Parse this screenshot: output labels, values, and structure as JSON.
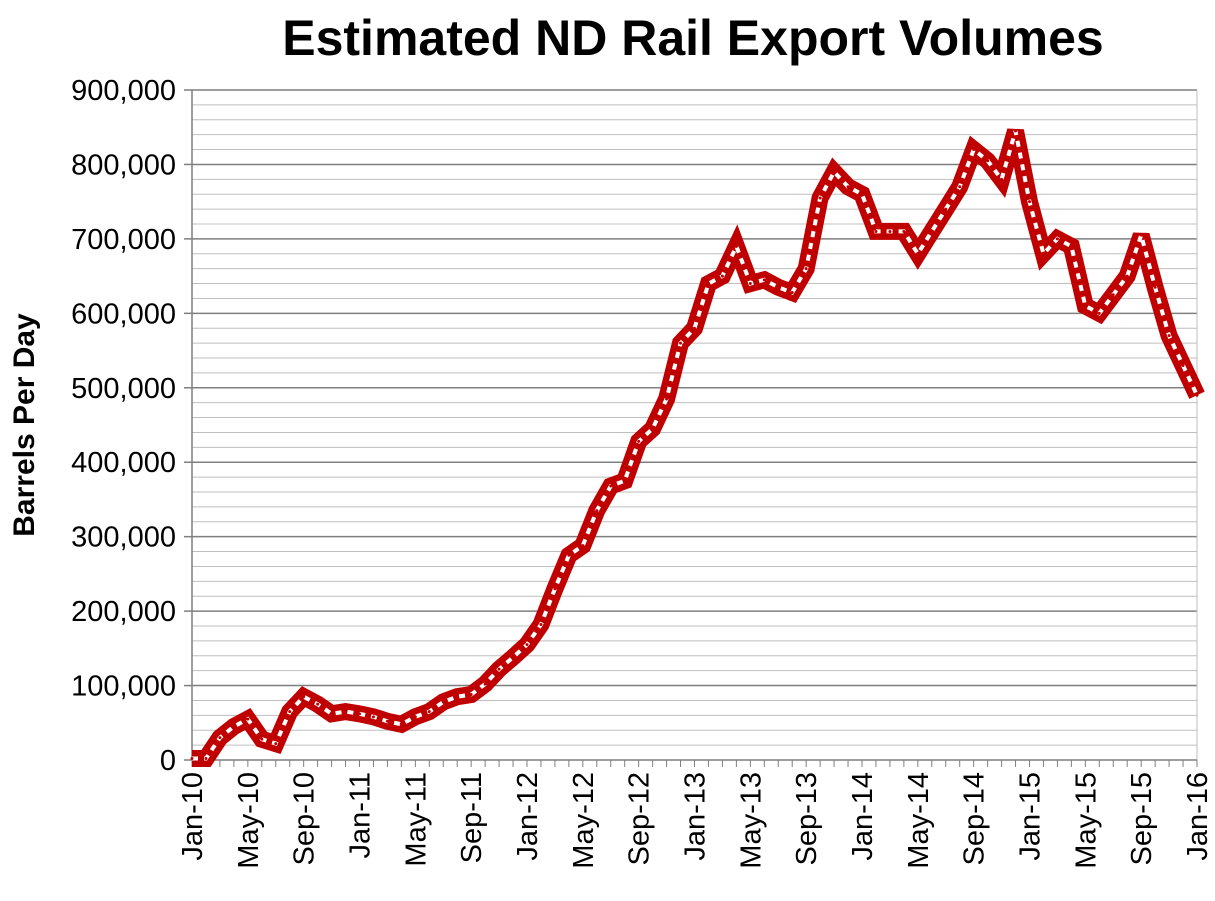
{
  "chart_data": {
    "type": "line",
    "title": "Estimated ND Rail Export Volumes",
    "xlabel": "",
    "ylabel": "Barrels Per Day",
    "ylim": [
      0,
      900000
    ],
    "y_ticks": [
      0,
      100000,
      200000,
      300000,
      400000,
      500000,
      600000,
      700000,
      800000,
      900000
    ],
    "y_tick_labels": [
      "0",
      "100,000",
      "200,000",
      "300,000",
      "400,000",
      "500,000",
      "600,000",
      "700,000",
      "800,000",
      "900,000"
    ],
    "x_tick_labels": [
      "Jan-10",
      "May-10",
      "Sep-10",
      "Jan-11",
      "May-11",
      "Sep-11",
      "Jan-12",
      "May-12",
      "Sep-12",
      "Jan-13",
      "May-13",
      "Sep-13",
      "Jan-14",
      "May-14",
      "Sep-14",
      "Jan-15",
      "May-15",
      "Sep-15",
      "Jan-16"
    ],
    "grid": true,
    "line_color": "#c00000",
    "series": [
      {
        "name": "",
        "x": [
          "Jan-10",
          "Feb-10",
          "Mar-10",
          "Apr-10",
          "May-10",
          "Jun-10",
          "Jul-10",
          "Aug-10",
          "Sep-10",
          "Oct-10",
          "Nov-10",
          "Dec-10",
          "Jan-11",
          "Feb-11",
          "Mar-11",
          "Apr-11",
          "May-11",
          "Jun-11",
          "Jul-11",
          "Aug-11",
          "Sep-11",
          "Oct-11",
          "Nov-11",
          "Dec-11",
          "Jan-12",
          "Feb-12",
          "Mar-12",
          "Apr-12",
          "May-12",
          "Jun-12",
          "Jul-12",
          "Aug-12",
          "Sep-12",
          "Oct-12",
          "Nov-12",
          "Dec-12",
          "Jan-13",
          "Feb-13",
          "Mar-13",
          "Apr-13",
          "May-13",
          "Jun-13",
          "Jul-13",
          "Aug-13",
          "Sep-13",
          "Oct-13",
          "Nov-13",
          "Dec-13",
          "Jan-14",
          "Feb-14",
          "Mar-14",
          "Apr-14",
          "May-14",
          "Jun-14",
          "Jul-14",
          "Aug-14",
          "Sep-14",
          "Oct-14",
          "Nov-14",
          "Dec-14",
          "Jan-15",
          "Feb-15",
          "Mar-15",
          "Apr-15",
          "May-15",
          "Jun-15",
          "Jul-15",
          "Aug-15",
          "Sep-15",
          "Oct-15",
          "Nov-15",
          "Dec-15",
          "Jan-16"
        ],
        "values": [
          2000,
          2000,
          30000,
          45000,
          55000,
          28000,
          22000,
          65000,
          85000,
          75000,
          62000,
          65000,
          62000,
          58000,
          52000,
          48000,
          58000,
          65000,
          78000,
          85000,
          88000,
          102000,
          122000,
          138000,
          155000,
          182000,
          230000,
          275000,
          288000,
          335000,
          368000,
          375000,
          428000,
          445000,
          485000,
          560000,
          580000,
          640000,
          650000,
          690000,
          640000,
          645000,
          635000,
          628000,
          660000,
          755000,
          790000,
          770000,
          760000,
          710000,
          710000,
          710000,
          680000,
          710000,
          740000,
          770000,
          820000,
          805000,
          780000,
          845000,
          750000,
          680000,
          700000,
          690000,
          610000,
          600000,
          625000,
          650000,
          705000,
          635000,
          570000,
          530000,
          490000
        ]
      }
    ]
  }
}
